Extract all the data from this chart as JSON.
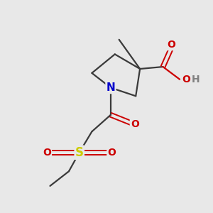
{
  "background_color": "#e8e8e8",
  "bond_color": "#3a3a3a",
  "N_color": "#0000cc",
  "O_color": "#cc0000",
  "S_color": "#cccc00",
  "OH_color": "#808080",
  "figsize": [
    3.0,
    3.0
  ],
  "dpi": 100,
  "xlim": [
    0,
    10
  ],
  "ylim": [
    0,
    10
  ]
}
